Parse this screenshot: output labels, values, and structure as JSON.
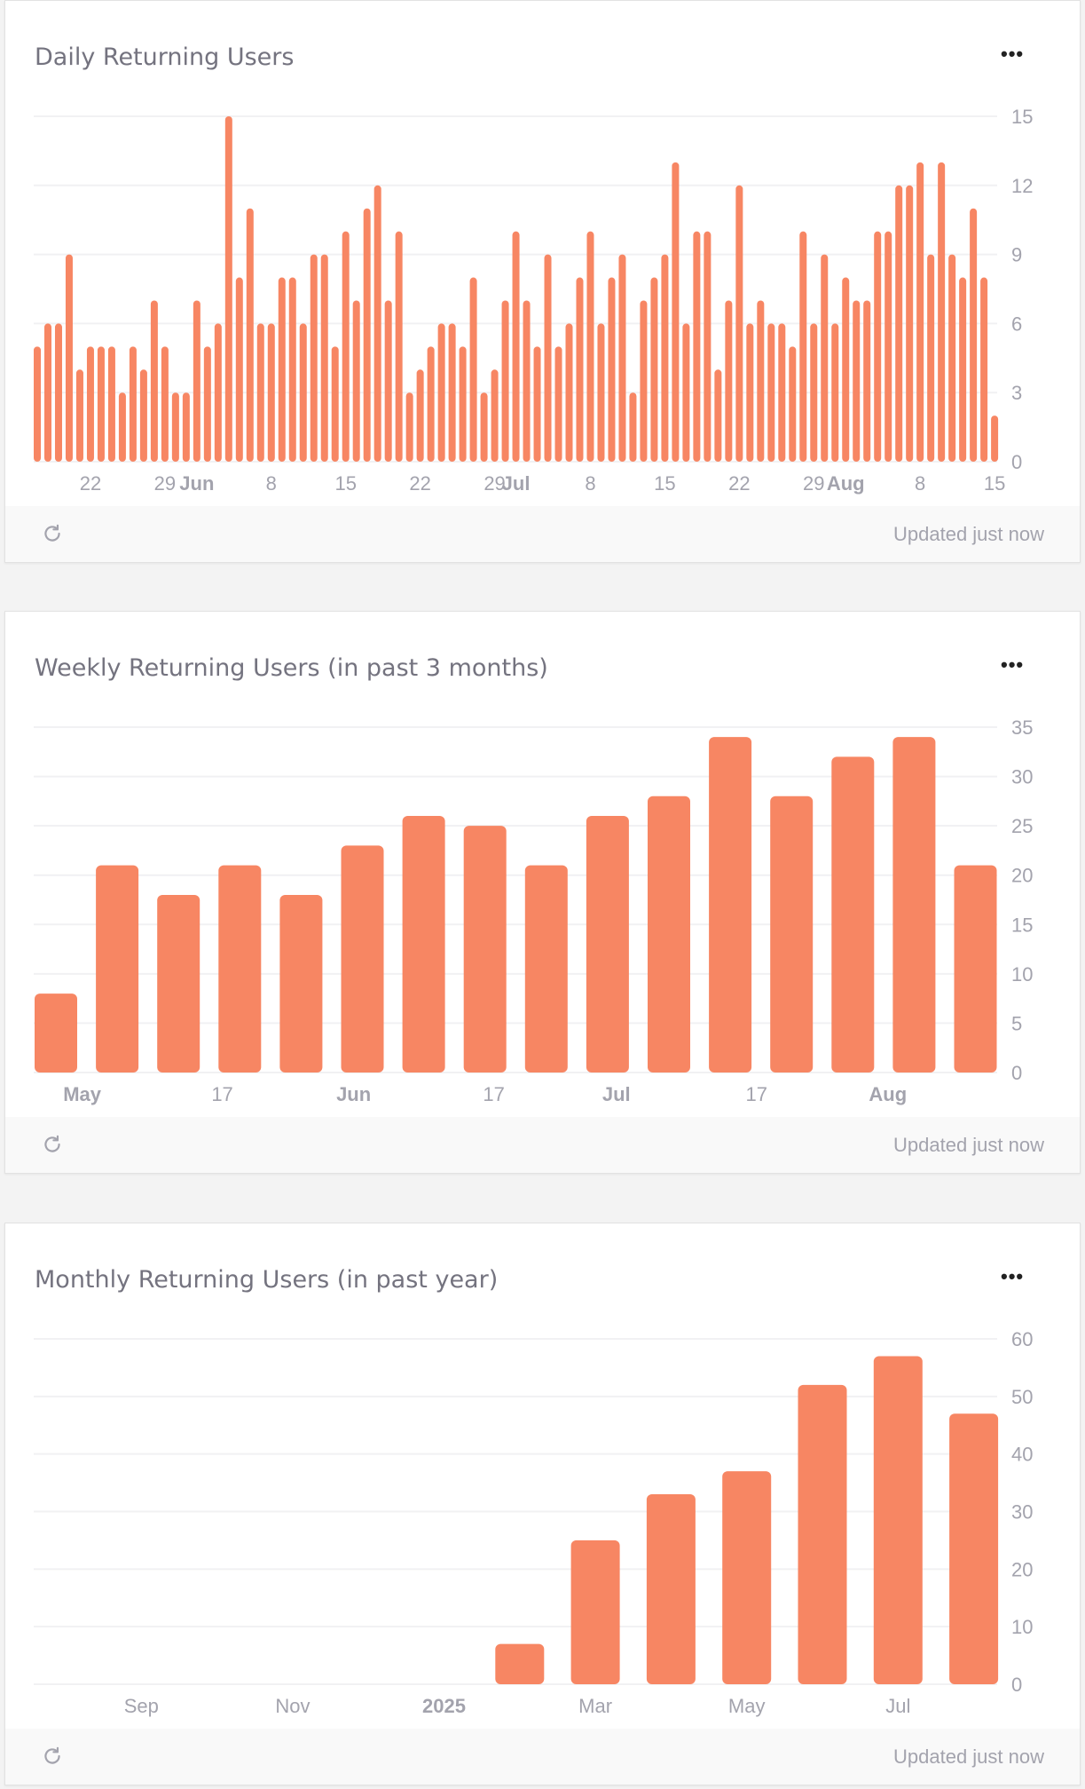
{
  "colors": {
    "bar": "#f78663",
    "grid": "#f1f1f3",
    "axis_text": "#a3a3ad",
    "title": "#74737f",
    "footer_bg": "#f9f9f9"
  },
  "cards": [
    {
      "title": "Daily Returning Users",
      "menu_icon": "more-horizontal-icon",
      "footer": {
        "refresh_icon": "refresh-icon",
        "status": "Updated just now"
      }
    },
    {
      "title": "Weekly Returning Users (in past 3 months)",
      "menu_icon": "more-horizontal-icon",
      "footer": {
        "refresh_icon": "refresh-icon",
        "status": "Updated just now"
      }
    },
    {
      "title": "Monthly Returning Users (in past year)",
      "menu_icon": "more-horizontal-icon",
      "footer": {
        "refresh_icon": "refresh-icon",
        "status": "Updated just now"
      }
    }
  ],
  "chart_data": [
    {
      "type": "bar",
      "title": "Daily Returning Users",
      "period": "day",
      "x_start": "2025-05-17",
      "values": [
        5,
        6,
        6,
        9,
        4,
        5,
        5,
        5,
        3,
        5,
        4,
        7,
        5,
        3,
        3,
        7,
        5,
        6,
        15,
        8,
        11,
        6,
        6,
        8,
        8,
        6,
        9,
        9,
        5,
        10,
        7,
        11,
        12,
        7,
        10,
        3,
        4,
        5,
        6,
        6,
        5,
        8,
        3,
        4,
        7,
        10,
        7,
        5,
        9,
        5,
        6,
        8,
        10,
        6,
        8,
        9,
        3,
        7,
        8,
        9,
        13,
        6,
        10,
        10,
        4,
        7,
        12,
        6,
        7,
        6,
        6,
        5,
        10,
        6,
        9,
        6,
        8,
        7,
        7,
        10,
        10,
        12,
        12,
        13,
        9,
        13,
        9,
        8,
        11,
        8,
        2
      ],
      "ylim": [
        0,
        15
      ],
      "y_ticks": [
        0,
        3,
        6,
        9,
        12,
        15
      ],
      "y_axis_side": "right",
      "grid": true,
      "x_ticks": [
        {
          "label": "22",
          "date": "2025-05-22",
          "bold": false
        },
        {
          "label": "29",
          "date": "2025-05-29",
          "bold": false
        },
        {
          "label": "Jun",
          "date": "2025-06-01",
          "bold": true
        },
        {
          "label": "8",
          "date": "2025-06-08",
          "bold": false
        },
        {
          "label": "15",
          "date": "2025-06-15",
          "bold": false
        },
        {
          "label": "22",
          "date": "2025-06-22",
          "bold": false
        },
        {
          "label": "29",
          "date": "2025-06-29",
          "bold": false
        },
        {
          "label": "Jul",
          "date": "2025-07-01",
          "bold": true
        },
        {
          "label": "8",
          "date": "2025-07-08",
          "bold": false
        },
        {
          "label": "15",
          "date": "2025-07-15",
          "bold": false
        },
        {
          "label": "22",
          "date": "2025-07-22",
          "bold": false
        },
        {
          "label": "29",
          "date": "2025-07-29",
          "bold": false
        },
        {
          "label": "Aug",
          "date": "2025-08-01",
          "bold": true
        },
        {
          "label": "8",
          "date": "2025-08-08",
          "bold": false
        },
        {
          "label": "15",
          "date": "2025-08-15",
          "bold": false
        }
      ]
    },
    {
      "type": "bar",
      "title": "Weekly Returning Users (in past 3 months)",
      "period": "week",
      "x_start": "2025-04-28",
      "values": [
        8,
        21,
        18,
        21,
        18,
        23,
        26,
        25,
        21,
        26,
        28,
        34,
        28,
        32,
        34,
        21
      ],
      "ylim": [
        0,
        35
      ],
      "y_ticks": [
        0,
        5,
        10,
        15,
        20,
        25,
        30,
        35
      ],
      "y_axis_side": "right",
      "grid": true,
      "x_ticks": [
        {
          "label": "May",
          "date": "2025-05-01",
          "bold": true
        },
        {
          "label": "17",
          "date": "2025-05-17",
          "bold": false
        },
        {
          "label": "Jun",
          "date": "2025-06-01",
          "bold": true
        },
        {
          "label": "17",
          "date": "2025-06-17",
          "bold": false
        },
        {
          "label": "Jul",
          "date": "2025-07-01",
          "bold": true
        },
        {
          "label": "17",
          "date": "2025-07-17",
          "bold": false
        },
        {
          "label": "Aug",
          "date": "2025-08-01",
          "bold": true
        }
      ]
    },
    {
      "type": "bar",
      "title": "Monthly Returning Users (in past year)",
      "period": "month",
      "x_start": "2024-08-01",
      "values": [
        0,
        0,
        0,
        0,
        0,
        0,
        7,
        25,
        33,
        37,
        52,
        57,
        47
      ],
      "ylim": [
        0,
        60
      ],
      "y_ticks": [
        0,
        10,
        20,
        30,
        40,
        50,
        60
      ],
      "y_axis_side": "right",
      "grid": true,
      "x_ticks": [
        {
          "label": "Sep",
          "date": "2024-09-01",
          "bold": false
        },
        {
          "label": "Nov",
          "date": "2024-11-01",
          "bold": false
        },
        {
          "label": "2025",
          "date": "2025-01-01",
          "bold": true
        },
        {
          "label": "Mar",
          "date": "2025-03-01",
          "bold": false
        },
        {
          "label": "May",
          "date": "2025-05-01",
          "bold": false
        },
        {
          "label": "Jul",
          "date": "2025-07-01",
          "bold": false
        }
      ]
    }
  ]
}
